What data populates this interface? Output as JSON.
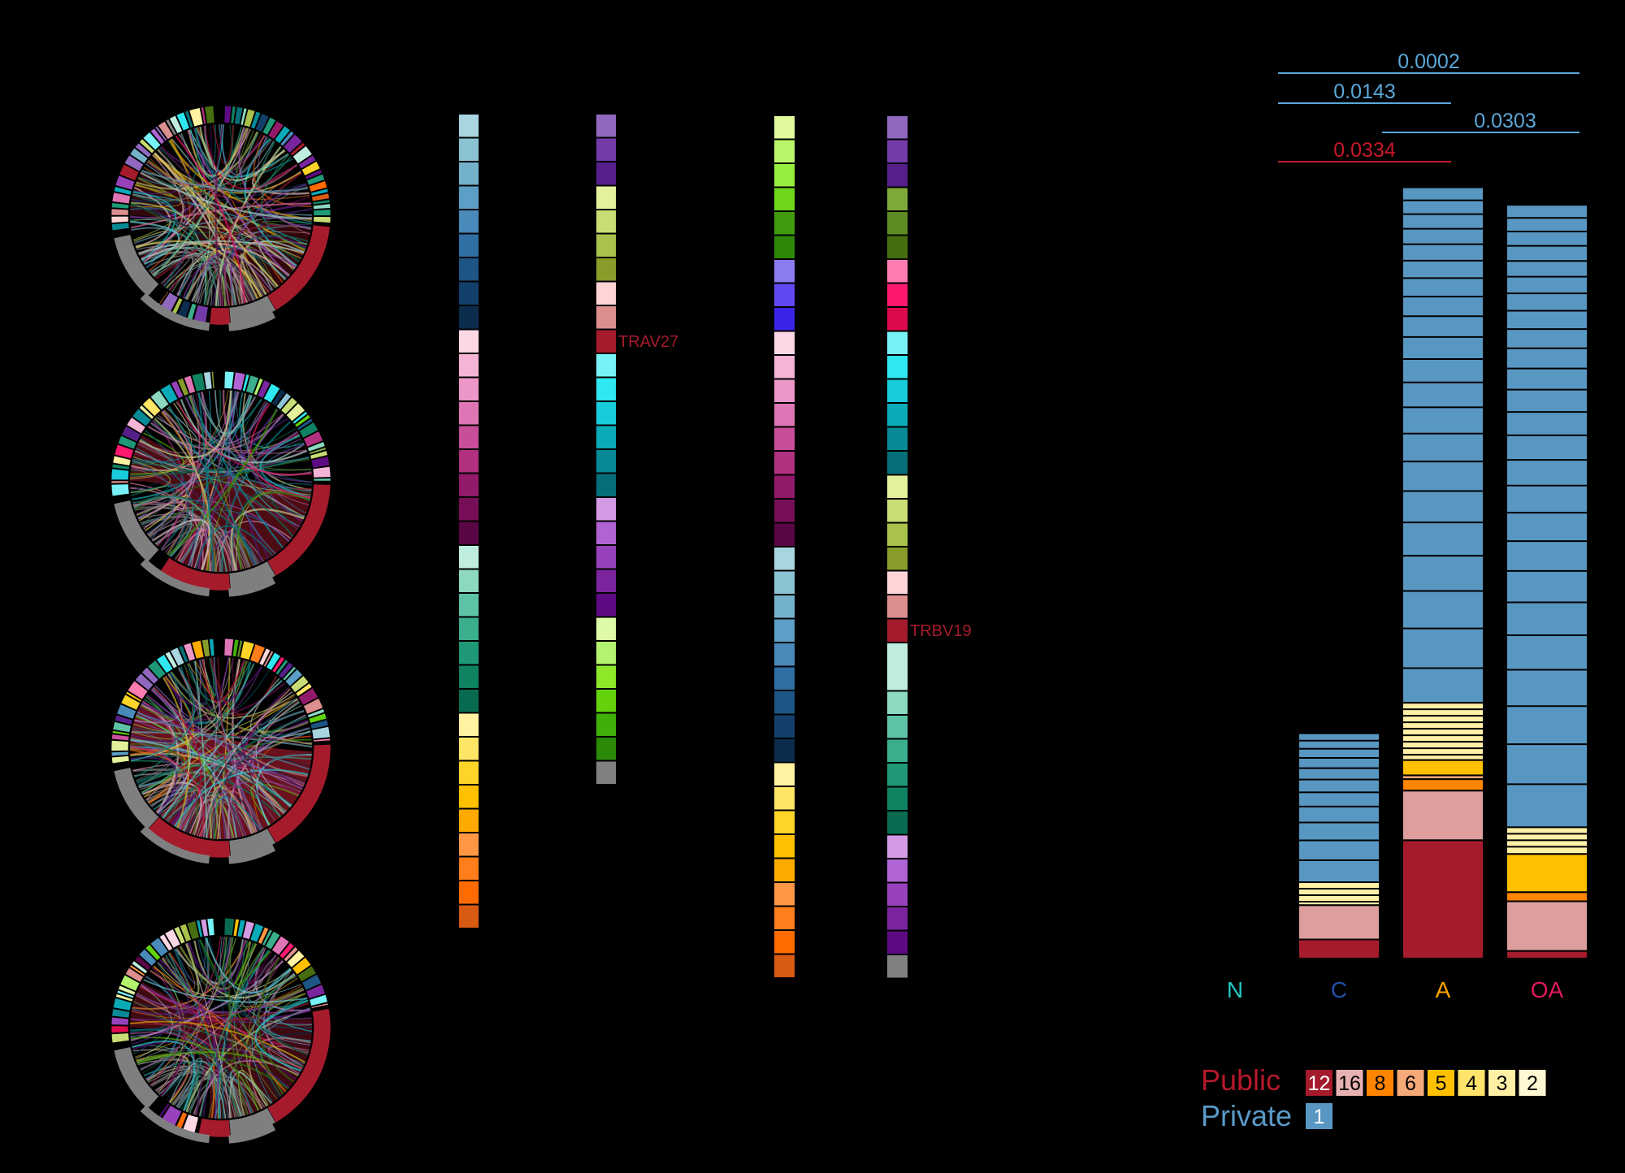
{
  "chart_data": [
    {
      "type": "chord",
      "panels": [
        {
          "name": "",
          "highlight": "#a51b2c"
        },
        {
          "name": "",
          "highlight": "#a51b2c"
        },
        {
          "name": "",
          "highlight": "#a51b2c"
        },
        {
          "name": "",
          "highlight": "#a51b2c"
        }
      ]
    },
    {
      "type": "color_legend",
      "columns": [
        {
          "colors": [
            "#a8d5e0",
            "#8cc3d4",
            "#74b2cc",
            "#5c9fc6",
            "#4a8abb",
            "#2f6fa3",
            "#1d5584",
            "#13406a",
            "#0b2c4d",
            "#fcd8e6",
            "#f4b4d6",
            "#ec97c8",
            "#de75b4",
            "#c94e9a",
            "#b1307f",
            "#921a6b",
            "#760f58",
            "#590645",
            "#bfeee0",
            "#8cd8c0",
            "#5ec3a6",
            "#3aae8d",
            "#1f9878",
            "#0f8262",
            "#086a50",
            "#fff2a0",
            "#ffe566",
            "#ffd428",
            "#ffc000",
            "#ffaa00",
            "#ff9744",
            "#ff7d1a",
            "#ff6b00",
            "#d95a13"
          ],
          "label": ""
        },
        {
          "colors": [
            "#9068bf",
            "#743aa8",
            "#561f8a",
            "#e4f09c",
            "#c8dd74",
            "#a9c24c",
            "#889c2a",
            "#ffd4d4",
            "#dd8f8f",
            "#a51b2c",
            "#77f2f7",
            "#2ee7f0",
            "#18ccdc",
            "#0aaab7",
            "#078a96",
            "#056e78",
            "#d49be4",
            "#b064d3",
            "#9742bb",
            "#7a259e",
            "#5e0a82",
            "#dcfaa7",
            "#b4f36e",
            "#8ee82a",
            "#63d20c",
            "#3faf0a",
            "#2b8a08",
            "#808080"
          ],
          "label": "TRAV27",
          "label_index": 9
        },
        {
          "colors": [
            "#e1fa9c",
            "#b9f66c",
            "#98ee3e",
            "#6fd71a",
            "#409c0e",
            "#2d8808",
            "#8a7cf0",
            "#5f49f3",
            "#3a24e7",
            "#fcd8e6",
            "#f4b4d6",
            "#ec97c8",
            "#de75b4",
            "#c94e9a",
            "#b1307f",
            "#921a6b",
            "#760f58",
            "#590645",
            "#a8d5e0",
            "#8cc3d4",
            "#74b2cc",
            "#5c9fc6",
            "#4a8abb",
            "#2f6fa3",
            "#1d5584",
            "#13406a",
            "#0b2c4d",
            "#fff2a0",
            "#ffe566",
            "#ffd428",
            "#ffc000",
            "#ffaa00",
            "#ff9744",
            "#ff7d1a",
            "#ff6b00",
            "#d95a13"
          ],
          "label": ""
        },
        {
          "colors": [
            "#9068bf",
            "#743aa8",
            "#561f8a",
            "#7fa83a",
            "#5e8b24",
            "#466e11",
            "#ff7cb0",
            "#ff186f",
            "#dc0a4c",
            "#77f2f7",
            "#2ee7f0",
            "#18ccdc",
            "#0aaab7",
            "#078a96",
            "#056e78",
            "#e4f09c",
            "#c8dd74",
            "#a9c24c",
            "#889c2a",
            "#ffd4d4",
            "#dd8f8f",
            "#a51b2c",
            "#bfeee0",
            "#8cd8c0",
            "#5ec3a6",
            "#3aae8d",
            "#1f9878",
            "#0f8262",
            "#086a50",
            "#d49be4",
            "#b064d3",
            "#9742bb",
            "#7a259e",
            "#5e0a82",
            "#808080"
          ],
          "label": "TRBV19",
          "label_index": 21
        }
      ]
    },
    {
      "type": "bar",
      "stacked": true,
      "categories": [
        "N",
        "C",
        "A",
        "OA"
      ],
      "category_colors": [
        "#26c6c0",
        "#1f4fa8",
        "#ffa300",
        "#e0185c"
      ],
      "ylim": [
        0,
        100
      ],
      "series": [
        {
          "name": "12",
          "color": "#a51b2c",
          "values": [
            0,
            2.5,
            15.5,
            1.0
          ]
        },
        {
          "name": "16",
          "color": "#de9e9e",
          "values": [
            0,
            4.5,
            6.5,
            6.5
          ]
        },
        {
          "name": "8",
          "color": "#ff8400",
          "values": [
            0,
            0,
            1.5,
            1.2
          ]
        },
        {
          "name": "6",
          "color": "#f5a878",
          "values": [
            0,
            0,
            0.5,
            0
          ]
        },
        {
          "name": "5",
          "color": "#ffc000",
          "values": [
            0,
            0,
            2.0,
            5.0
          ]
        },
        {
          "name": "4",
          "color": "#ffe36a",
          "values": [
            0,
            0,
            0,
            0
          ]
        },
        {
          "name": "3",
          "color": "#fff0a6",
          "values": [
            0,
            3.0,
            7.5,
            3.5
          ]
        },
        {
          "name": "2",
          "color": "#fff8d2",
          "values": [
            0,
            0,
            0,
            0
          ]
        },
        {
          "name": "1",
          "color": "#5897c2",
          "values": [
            0,
            19.5,
            67.5,
            81.5
          ]
        }
      ],
      "significance": [
        {
          "label": "0.0002",
          "from": "C",
          "to": "OA",
          "color": "#5aa7d8"
        },
        {
          "label": "0.0143",
          "from": "C",
          "to": "A",
          "color": "#5aa7d8"
        },
        {
          "label": "0.0303",
          "from": "A",
          "to": "OA",
          "color": "#5aa7d8"
        },
        {
          "label": "0.0334",
          "from": "C",
          "to": "A",
          "color": "#c8182a"
        }
      ],
      "legend": {
        "public_label": "Public",
        "public_color": "#b5192b",
        "private_label": "Private",
        "private_color": "#5a9ac7",
        "public_items": [
          {
            "label": "12",
            "color": "#a51b2c",
            "text_color": "#ffffff"
          },
          {
            "label": "16",
            "color": "#e8b2b2",
            "text_color": "#000000"
          },
          {
            "label": "8",
            "color": "#ff8400",
            "text_color": "#000000"
          },
          {
            "label": "6",
            "color": "#f5a878",
            "text_color": "#000000"
          },
          {
            "label": "5",
            "color": "#ffc000",
            "text_color": "#000000"
          },
          {
            "label": "4",
            "color": "#ffe36a",
            "text_color": "#000000"
          },
          {
            "label": "3",
            "color": "#fff0a6",
            "text_color": "#000000"
          },
          {
            "label": "2",
            "color": "#fff8d2",
            "text_color": "#000000"
          }
        ],
        "private_items": [
          {
            "label": "1",
            "color": "#5897c2",
            "text_color": "#ffffff"
          }
        ]
      }
    }
  ]
}
